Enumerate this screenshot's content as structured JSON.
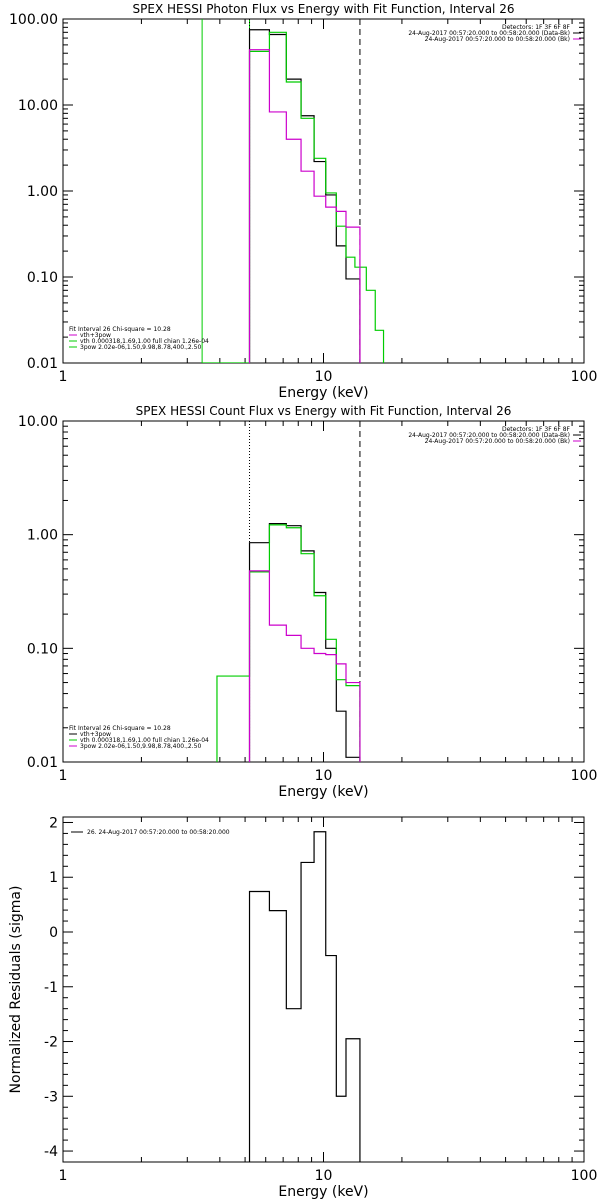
{
  "chart_data": [
    {
      "type": "line",
      "title": "SPEX HESSI Photon Flux vs Energy with Fit Function, Interval 26",
      "xlabel": "Energy (keV)",
      "ylabel": "",
      "xscale": "log",
      "yscale": "log",
      "xlim": [
        1,
        100
      ],
      "ylim": [
        0.01,
        100
      ],
      "xtick_labels": [
        "1",
        "10",
        "100"
      ],
      "ytick_labels": [
        "0.01",
        "0.10",
        "1.00",
        "10.00",
        "100.00"
      ],
      "legend_top_right": [
        {
          "text": "Detectors: 1F 3F 6F 8F",
          "color": ""
        },
        {
          "text": "24-Aug-2017 00:57:20.000 to 00:58:20.000 (Data-Bk)",
          "color": "#000000"
        },
        {
          "text": "24-Aug-2017 00:57:20.000 to 00:58:20.000 (Bk)",
          "color": "#cc00cc"
        }
      ],
      "legend_bottom_left": [
        {
          "text": "Fit Interval 26   Chi-square = 10.28",
          "color": ""
        },
        {
          "text": "vth+3pow",
          "color": "#cc00cc"
        },
        {
          "text": "vth 0.000318,1.69,1.00  full chian 1.26e-04",
          "color": "#00cc00"
        },
        {
          "text": "3pow 2.02e-06,1.50,9.98,8.78,400.,2.50",
          "color": "#00cc00"
        }
      ],
      "vlines": [
        {
          "x": 3.42,
          "color": "#00cc00",
          "style": "solid"
        },
        {
          "x": 5.2,
          "color": "#00cc00",
          "style": "solid"
        },
        {
          "x": 5.2,
          "color": "#000000",
          "style": "dotted"
        },
        {
          "x": 13.8,
          "color": "#000000",
          "style": "dashed"
        }
      ],
      "series": [
        {
          "color": "#000000",
          "edges": [
            5.2,
            6.2,
            7.2,
            8.2,
            9.2,
            10.2,
            11.2,
            12.2,
            13.8
          ],
          "values": [
            75,
            66,
            20,
            7.5,
            2.2,
            0.9,
            0.23,
            0.095
          ]
        },
        {
          "color": "#00cc00",
          "edges": [
            3.42,
            5.2,
            6.2,
            7.2,
            8.2,
            9.2,
            10.2,
            11.2,
            12.2,
            13.2,
            14.6,
            15.8,
            17.0
          ],
          "values": [
            0.01,
            42,
            70,
            18.5,
            7.0,
            2.4,
            0.95,
            0.39,
            0.17,
            0.13,
            0.07,
            0.024
          ]
        },
        {
          "color": "#cc00cc",
          "edges": [
            5.2,
            6.2,
            7.2,
            8.2,
            9.2,
            10.2,
            11.2,
            12.2,
            13.8
          ],
          "values": [
            44,
            8.3,
            4.0,
            1.7,
            0.87,
            0.65,
            0.58,
            0.38
          ]
        }
      ]
    },
    {
      "type": "line",
      "title": "SPEX HESSI Count Flux vs Energy with Fit Function, Interval 26",
      "xlabel": "Energy (keV)",
      "ylabel": "",
      "xscale": "log",
      "yscale": "log",
      "xlim": [
        1,
        100
      ],
      "ylim": [
        0.01,
        10
      ],
      "xtick_labels": [
        "1",
        "10",
        "100"
      ],
      "ytick_labels": [
        "0.01",
        "0.10",
        "1.00",
        "10.00"
      ],
      "legend_top_right": [
        {
          "text": "Detectors: 1F 3F 6F 8F",
          "color": ""
        },
        {
          "text": "24-Aug-2017 00:57:20.000 to 00:58:20.000 (Data-Bk)",
          "color": "#000000"
        },
        {
          "text": "24-Aug-2017 00:57:20.000 to 00:58:20.000 (Bk)",
          "color": "#cc00cc"
        }
      ],
      "legend_bottom_left": [
        {
          "text": "Fit Interval 26   Chi-square = 10.28",
          "color": ""
        },
        {
          "text": "vth+3pow",
          "color": "#000000"
        },
        {
          "text": "vth 0.000318,1.69,1.00  full chian 1.26e-04",
          "color": "#00cc00"
        },
        {
          "text": "3pow 2.02e-06,1.50,9.98,8.78,400.,2.50",
          "color": "#cc00cc"
        }
      ],
      "vlines": [
        {
          "x": 5.2,
          "color": "#000000",
          "style": "dotted"
        },
        {
          "x": 13.8,
          "color": "#000000",
          "style": "dashed"
        }
      ],
      "series": [
        {
          "color": "#000000",
          "edges": [
            5.2,
            6.2,
            7.2,
            8.2,
            9.2,
            10.2,
            11.2,
            12.2,
            13.8
          ],
          "values": [
            0.85,
            1.25,
            1.2,
            0.72,
            0.31,
            0.1,
            0.028,
            0.011
          ]
        },
        {
          "color": "#00cc00",
          "edges": [
            3.9,
            5.2,
            6.2,
            7.2,
            8.2,
            9.2,
            10.2,
            11.2,
            12.2,
            13.8
          ],
          "values": [
            0.057,
            0.47,
            1.22,
            1.15,
            0.68,
            0.29,
            0.12,
            0.053,
            0.047
          ]
        },
        {
          "color": "#cc00cc",
          "edges": [
            5.2,
            6.2,
            7.2,
            8.2,
            9.2,
            10.2,
            11.2,
            12.2,
            13.8
          ],
          "values": [
            0.48,
            0.16,
            0.13,
            0.1,
            0.09,
            0.088,
            0.073,
            0.05
          ]
        }
      ]
    },
    {
      "type": "line",
      "title": "",
      "xlabel": "Energy (keV)",
      "ylabel": "Normalized Residuals (sigma)",
      "xscale": "log",
      "yscale": "linear",
      "xlim": [
        1,
        100
      ],
      "ylim": [
        -4.2,
        2.1
      ],
      "xtick_labels": [
        "1",
        "10",
        "100"
      ],
      "yticks": [
        -4,
        -3,
        -2,
        -1,
        0,
        1,
        2
      ],
      "ytick_labels": [
        "-4",
        "-3",
        "-2",
        "-1",
        "0",
        "1",
        "2"
      ],
      "legend_top_left": [
        {
          "text": "26. 24-Aug-2017 00:57:20.000 to 00:58:20.000",
          "color": "#000000"
        }
      ],
      "vlines": [],
      "series": [
        {
          "color": "#000000",
          "edges": [
            5.2,
            6.2,
            7.2,
            8.2,
            9.2,
            10.2,
            11.2,
            12.2,
            13.8
          ],
          "values": [
            0.74,
            0.39,
            -1.4,
            1.27,
            1.83,
            -0.43,
            -3.0,
            -1.95
          ]
        }
      ]
    }
  ]
}
